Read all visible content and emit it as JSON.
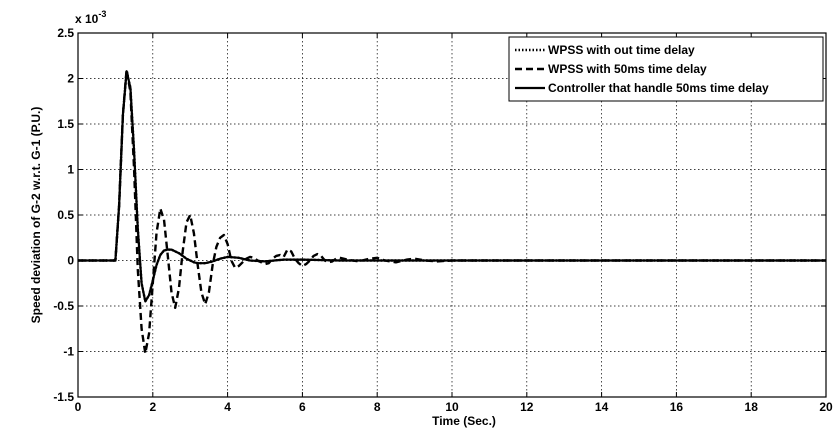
{
  "chart_data": {
    "type": "line",
    "xlabel": "Time (Sec.)",
    "ylabel": "Speed deviation of G-2 w.r.t. G-1 (P.U.)",
    "exponent_label": "x 10",
    "exponent_power": "-3",
    "xlim": [
      0,
      20
    ],
    "ylim": [
      -1.5,
      2.5
    ],
    "xticks": [
      0,
      2,
      4,
      6,
      8,
      10,
      12,
      14,
      16,
      18,
      20
    ],
    "yticks": [
      -1.5,
      -1,
      -0.5,
      0,
      0.5,
      1,
      1.5,
      2,
      2.5
    ],
    "ytick_labels": [
      "-1.5",
      "-1",
      "-0.5",
      "0",
      "0.5",
      "1",
      "1.5",
      "2",
      "2.5"
    ],
    "grid": true,
    "legend_position": "top-right",
    "series": [
      {
        "name": "WPSS with out time delay",
        "style": "dotted",
        "x": [
          0,
          1.0,
          1.1,
          1.2,
          1.3,
          1.4,
          1.5,
          1.6,
          1.7,
          1.8,
          1.9,
          2.0,
          2.1,
          2.2,
          2.3,
          2.4,
          2.5,
          2.6,
          2.7,
          2.8,
          2.9,
          3.0,
          3.1,
          3.2,
          3.4,
          3.6,
          3.8,
          4.0,
          4.3,
          4.6,
          5.0,
          5.5,
          6.0,
          7.0,
          8.0,
          20.0
        ],
        "values": [
          0,
          0,
          0.6,
          1.6,
          2.08,
          1.9,
          1.2,
          0.35,
          -0.25,
          -0.45,
          -0.38,
          -0.22,
          -0.05,
          0.06,
          0.11,
          0.12,
          0.12,
          0.1,
          0.08,
          0.05,
          0.02,
          0.0,
          -0.02,
          -0.03,
          -0.03,
          -0.01,
          0.02,
          0.04,
          0.03,
          0.0,
          -0.01,
          0.01,
          0.01,
          0,
          0,
          0
        ]
      },
      {
        "name": "WPSS with 50ms time delay",
        "style": "dashed",
        "x": [
          0,
          1.0,
          1.1,
          1.2,
          1.3,
          1.4,
          1.5,
          1.6,
          1.7,
          1.8,
          1.9,
          2.0,
          2.1,
          2.2,
          2.3,
          2.4,
          2.5,
          2.6,
          2.7,
          2.8,
          2.9,
          3.0,
          3.1,
          3.2,
          3.3,
          3.4,
          3.5,
          3.6,
          3.7,
          3.8,
          3.9,
          4.0,
          4.1,
          4.2,
          4.3,
          4.4,
          4.5,
          4.6,
          4.7,
          4.8,
          4.9,
          5.0,
          5.1,
          5.2,
          5.3,
          5.4,
          5.5,
          5.6,
          5.7,
          5.8,
          5.9,
          6.0,
          6.1,
          6.2,
          6.3,
          6.4,
          6.5,
          6.6,
          6.7,
          6.8,
          6.9,
          7.0,
          7.2,
          7.5,
          7.8,
          8.0,
          8.2,
          8.5,
          8.8,
          9.0,
          9.3,
          9.6,
          10.0,
          11.0,
          20.0
        ],
        "values": [
          0,
          0,
          0.6,
          1.6,
          2.1,
          1.85,
          1.0,
          -0.1,
          -0.75,
          -1.02,
          -0.8,
          -0.25,
          0.3,
          0.57,
          0.45,
          0.05,
          -0.35,
          -0.52,
          -0.3,
          0.1,
          0.42,
          0.5,
          0.3,
          -0.05,
          -0.35,
          -0.48,
          -0.35,
          -0.05,
          0.15,
          0.25,
          0.28,
          0.18,
          0.0,
          -0.08,
          -0.06,
          -0.02,
          0.02,
          0.04,
          0.03,
          0.0,
          -0.02,
          -0.04,
          -0.03,
          0.02,
          0.05,
          0.06,
          0.04,
          0.12,
          0.1,
          0.02,
          -0.03,
          -0.06,
          -0.04,
          0.0,
          0.05,
          0.07,
          0.05,
          0.0,
          -0.02,
          -0.01,
          0.02,
          0.03,
          0.01,
          -0.01,
          0.02,
          0.03,
          0.0,
          -0.02,
          0.01,
          0.02,
          0.0,
          -0.01,
          0.0,
          0,
          0
        ]
      },
      {
        "name": "Controller that handle 50ms time delay",
        "style": "solid",
        "x": [
          0,
          1.0,
          1.1,
          1.2,
          1.3,
          1.4,
          1.5,
          1.6,
          1.7,
          1.8,
          1.9,
          2.0,
          2.1,
          2.2,
          2.3,
          2.4,
          2.5,
          2.6,
          2.7,
          2.8,
          2.9,
          3.0,
          3.1,
          3.2,
          3.4,
          3.6,
          3.8,
          4.0,
          4.3,
          4.6,
          5.0,
          5.5,
          6.0,
          7.0,
          8.0,
          20.0
        ],
        "values": [
          0,
          0,
          0.6,
          1.6,
          2.08,
          1.9,
          1.2,
          0.35,
          -0.25,
          -0.45,
          -0.38,
          -0.22,
          -0.05,
          0.06,
          0.11,
          0.12,
          0.12,
          0.1,
          0.08,
          0.05,
          0.02,
          0.0,
          -0.02,
          -0.03,
          -0.03,
          -0.01,
          0.02,
          0.04,
          0.03,
          0.0,
          -0.01,
          0.01,
          0.01,
          0,
          0,
          0
        ]
      }
    ]
  }
}
